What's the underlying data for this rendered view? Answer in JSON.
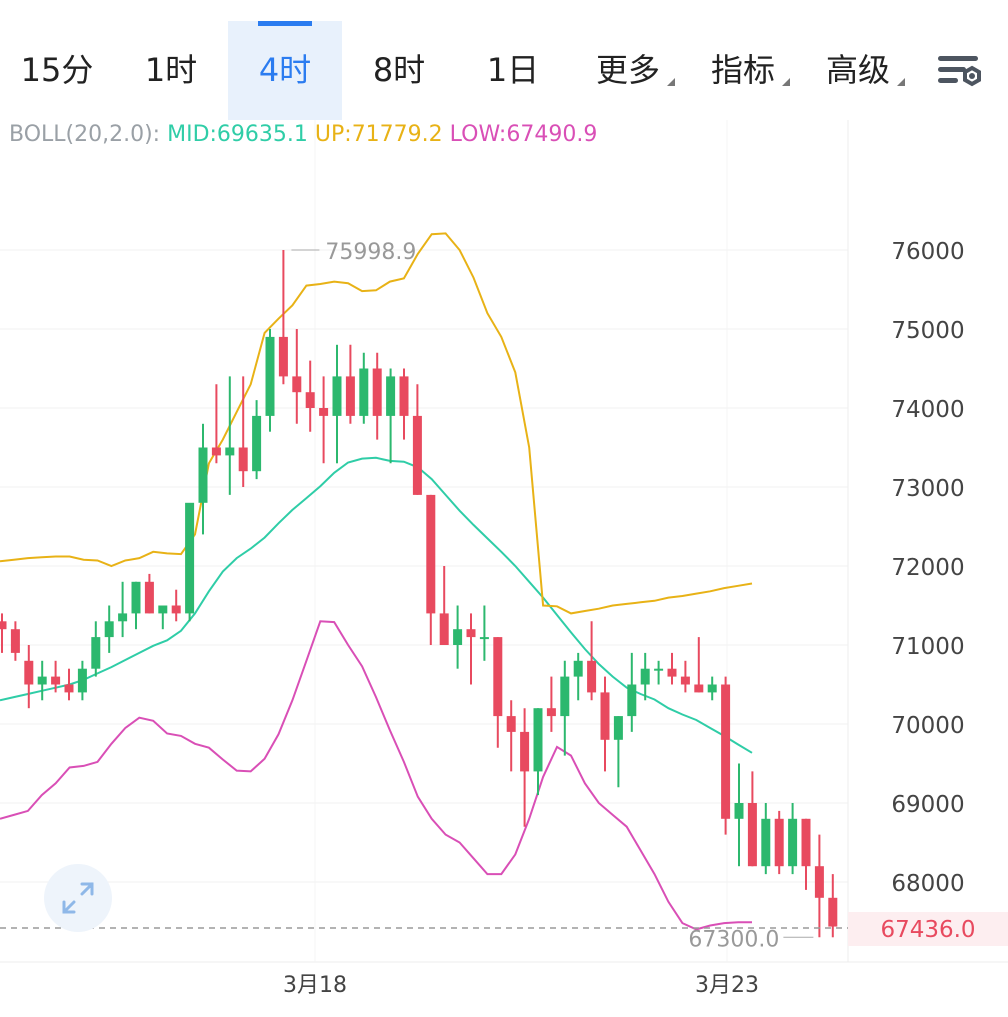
{
  "toolbar": {
    "tabs": [
      {
        "label": "15分",
        "active": false
      },
      {
        "label": "1时",
        "active": false
      },
      {
        "label": "4时",
        "active": true
      },
      {
        "label": "8时",
        "active": false
      },
      {
        "label": "1日",
        "active": false
      },
      {
        "label": "更多",
        "dropdown": true
      },
      {
        "label": "指标",
        "dropdown": true
      },
      {
        "label": "高级",
        "dropdown": true
      }
    ],
    "settings_icon": "chart-settings-icon"
  },
  "indicator": {
    "name": "BOLL(20,2.0):",
    "mid": "MID:69635.1",
    "up": "UP:71779.2",
    "low": "LOW:67490.9"
  },
  "colors": {
    "up_candle": "#2cb86e",
    "down_candle": "#e84a5f",
    "mid": "#2fcda7",
    "upper": "#e8b216",
    "lower": "#d94fb6",
    "last_price": "#e84a5f"
  },
  "chart_data": {
    "type": "candlestick",
    "y_ticks": [
      "76000",
      "75000",
      "74000",
      "73000",
      "72000",
      "71000",
      "70000",
      "69000",
      "68000"
    ],
    "x_ticks": [
      "3月18",
      "3月23"
    ],
    "ylim": [
      67000,
      77500
    ],
    "grid": true,
    "max_label": "75998.9",
    "min_label": "67300.0",
    "last_price": "67436.0",
    "candles": [
      [
        71300,
        71400,
        70900,
        71200
      ],
      [
        71200,
        71300,
        70800,
        70900
      ],
      [
        70800,
        71000,
        70200,
        70500
      ],
      [
        70500,
        70800,
        70300,
        70600
      ],
      [
        70600,
        70800,
        70400,
        70500
      ],
      [
        70500,
        70700,
        70300,
        70400
      ],
      [
        70400,
        70800,
        70300,
        70700
      ],
      [
        70700,
        71300,
        70600,
        71100
      ],
      [
        71100,
        71500,
        70900,
        71300
      ],
      [
        71300,
        71800,
        71100,
        71400
      ],
      [
        71400,
        71800,
        71200,
        71800
      ],
      [
        71800,
        71900,
        71400,
        71400
      ],
      [
        71400,
        71500,
        71200,
        71500
      ],
      [
        71500,
        71700,
        71300,
        71400
      ],
      [
        71400,
        72700,
        71300,
        72800
      ],
      [
        72800,
        73800,
        72400,
        73500
      ],
      [
        73500,
        74300,
        73300,
        73400
      ],
      [
        73400,
        74400,
        72900,
        73500
      ],
      [
        73500,
        74400,
        73000,
        73200
      ],
      [
        73200,
        74100,
        73100,
        73900
      ],
      [
        73900,
        75000,
        73700,
        74900
      ],
      [
        74900,
        76000,
        74300,
        74400
      ],
      [
        74400,
        75000,
        73800,
        74200
      ],
      [
        74200,
        74600,
        73700,
        74000
      ],
      [
        74000,
        74400,
        73300,
        73900
      ],
      [
        73900,
        74800,
        73300,
        74400
      ],
      [
        74400,
        74800,
        73800,
        73900
      ],
      [
        73900,
        74700,
        73800,
        74500
      ],
      [
        74500,
        74700,
        73600,
        73900
      ],
      [
        73900,
        74500,
        73300,
        74400
      ],
      [
        74400,
        74500,
        73600,
        73900
      ],
      [
        73900,
        74300,
        72900,
        72900
      ],
      [
        72900,
        72900,
        71000,
        71400
      ],
      [
        71400,
        72000,
        71000,
        71000
      ],
      [
        71000,
        71500,
        70700,
        71200
      ],
      [
        71200,
        71400,
        70500,
        71100
      ],
      [
        71100,
        71500,
        70800,
        71100
      ],
      [
        71100,
        71100,
        69700,
        70100
      ],
      [
        70100,
        70300,
        69400,
        69900
      ],
      [
        69900,
        70200,
        68700,
        69400
      ],
      [
        69400,
        70200,
        69100,
        70200
      ],
      [
        70200,
        70600,
        69900,
        70100
      ],
      [
        70100,
        70800,
        69600,
        70600
      ],
      [
        70600,
        70900,
        70300,
        70800
      ],
      [
        70800,
        71300,
        70300,
        70400
      ],
      [
        70400,
        70600,
        69400,
        69800
      ],
      [
        69800,
        70100,
        69200,
        70100
      ],
      [
        70100,
        70900,
        69900,
        70500
      ],
      [
        70500,
        70900,
        70300,
        70700
      ],
      [
        70700,
        70800,
        70500,
        70700
      ],
      [
        70700,
        70900,
        70500,
        70600
      ],
      [
        70600,
        70800,
        70400,
        70500
      ],
      [
        70500,
        71100,
        70400,
        70400
      ],
      [
        70400,
        70600,
        70300,
        70500
      ],
      [
        70500,
        70600,
        68600,
        68800
      ],
      [
        68800,
        69500,
        68200,
        69000
      ],
      [
        69000,
        69400,
        68200,
        68200
      ],
      [
        68200,
        69000,
        68100,
        68800
      ],
      [
        68800,
        68900,
        68100,
        68200
      ],
      [
        68200,
        69000,
        68100,
        68800
      ],
      [
        68800,
        68800,
        67900,
        68200
      ],
      [
        68200,
        68600,
        67300,
        67800
      ],
      [
        67800,
        68100,
        67300,
        67436
      ]
    ],
    "series": [
      {
        "name": "MID",
        "values": [
          70300,
          70340,
          70380,
          70420,
          70460,
          70500,
          70560,
          70640,
          70720,
          70810,
          70900,
          70990,
          71060,
          71180,
          71400,
          71680,
          71930,
          72100,
          72220,
          72360,
          72540,
          72710,
          72860,
          73010,
          73180,
          73310,
          73360,
          73370,
          73330,
          73320,
          73250,
          73100,
          72900,
          72700,
          72520,
          72350,
          72180,
          72000,
          71800,
          71600,
          71380,
          71160,
          70950,
          70760,
          70600,
          70460,
          70380,
          70310,
          70200,
          70120,
          70050,
          69950,
          69850,
          69740,
          69635
        ]
      },
      {
        "name": "UP",
        "values": [
          72060,
          72080,
          72100,
          72110,
          72120,
          72120,
          72080,
          72070,
          72000,
          72070,
          72100,
          72180,
          72160,
          72150,
          72400,
          73300,
          73600,
          73950,
          74300,
          74950,
          75130,
          75300,
          75550,
          75570,
          75600,
          75580,
          75480,
          75490,
          75600,
          75640,
          75950,
          76200,
          76210,
          76000,
          75650,
          75200,
          74900,
          74450,
          73500,
          71500,
          71490,
          71400,
          71430,
          71460,
          71500,
          71520,
          71540,
          71560,
          71600,
          71620,
          71650,
          71680,
          71720,
          71750,
          71779
        ]
      },
      {
        "name": "LOW",
        "values": [
          68800,
          68850,
          68900,
          69100,
          69250,
          69450,
          69470,
          69520,
          69750,
          69950,
          70080,
          70040,
          69880,
          69850,
          69750,
          69700,
          69550,
          69410,
          69400,
          69560,
          69870,
          70300,
          70800,
          71300,
          71290,
          71000,
          70730,
          70340,
          69920,
          69520,
          69080,
          68800,
          68600,
          68500,
          68300,
          68100,
          68100,
          68350,
          68800,
          69330,
          69710,
          69600,
          69250,
          69000,
          68850,
          68700,
          68400,
          68100,
          67750,
          67480,
          67400,
          67450,
          67480,
          67490,
          67491
        ]
      }
    ]
  }
}
